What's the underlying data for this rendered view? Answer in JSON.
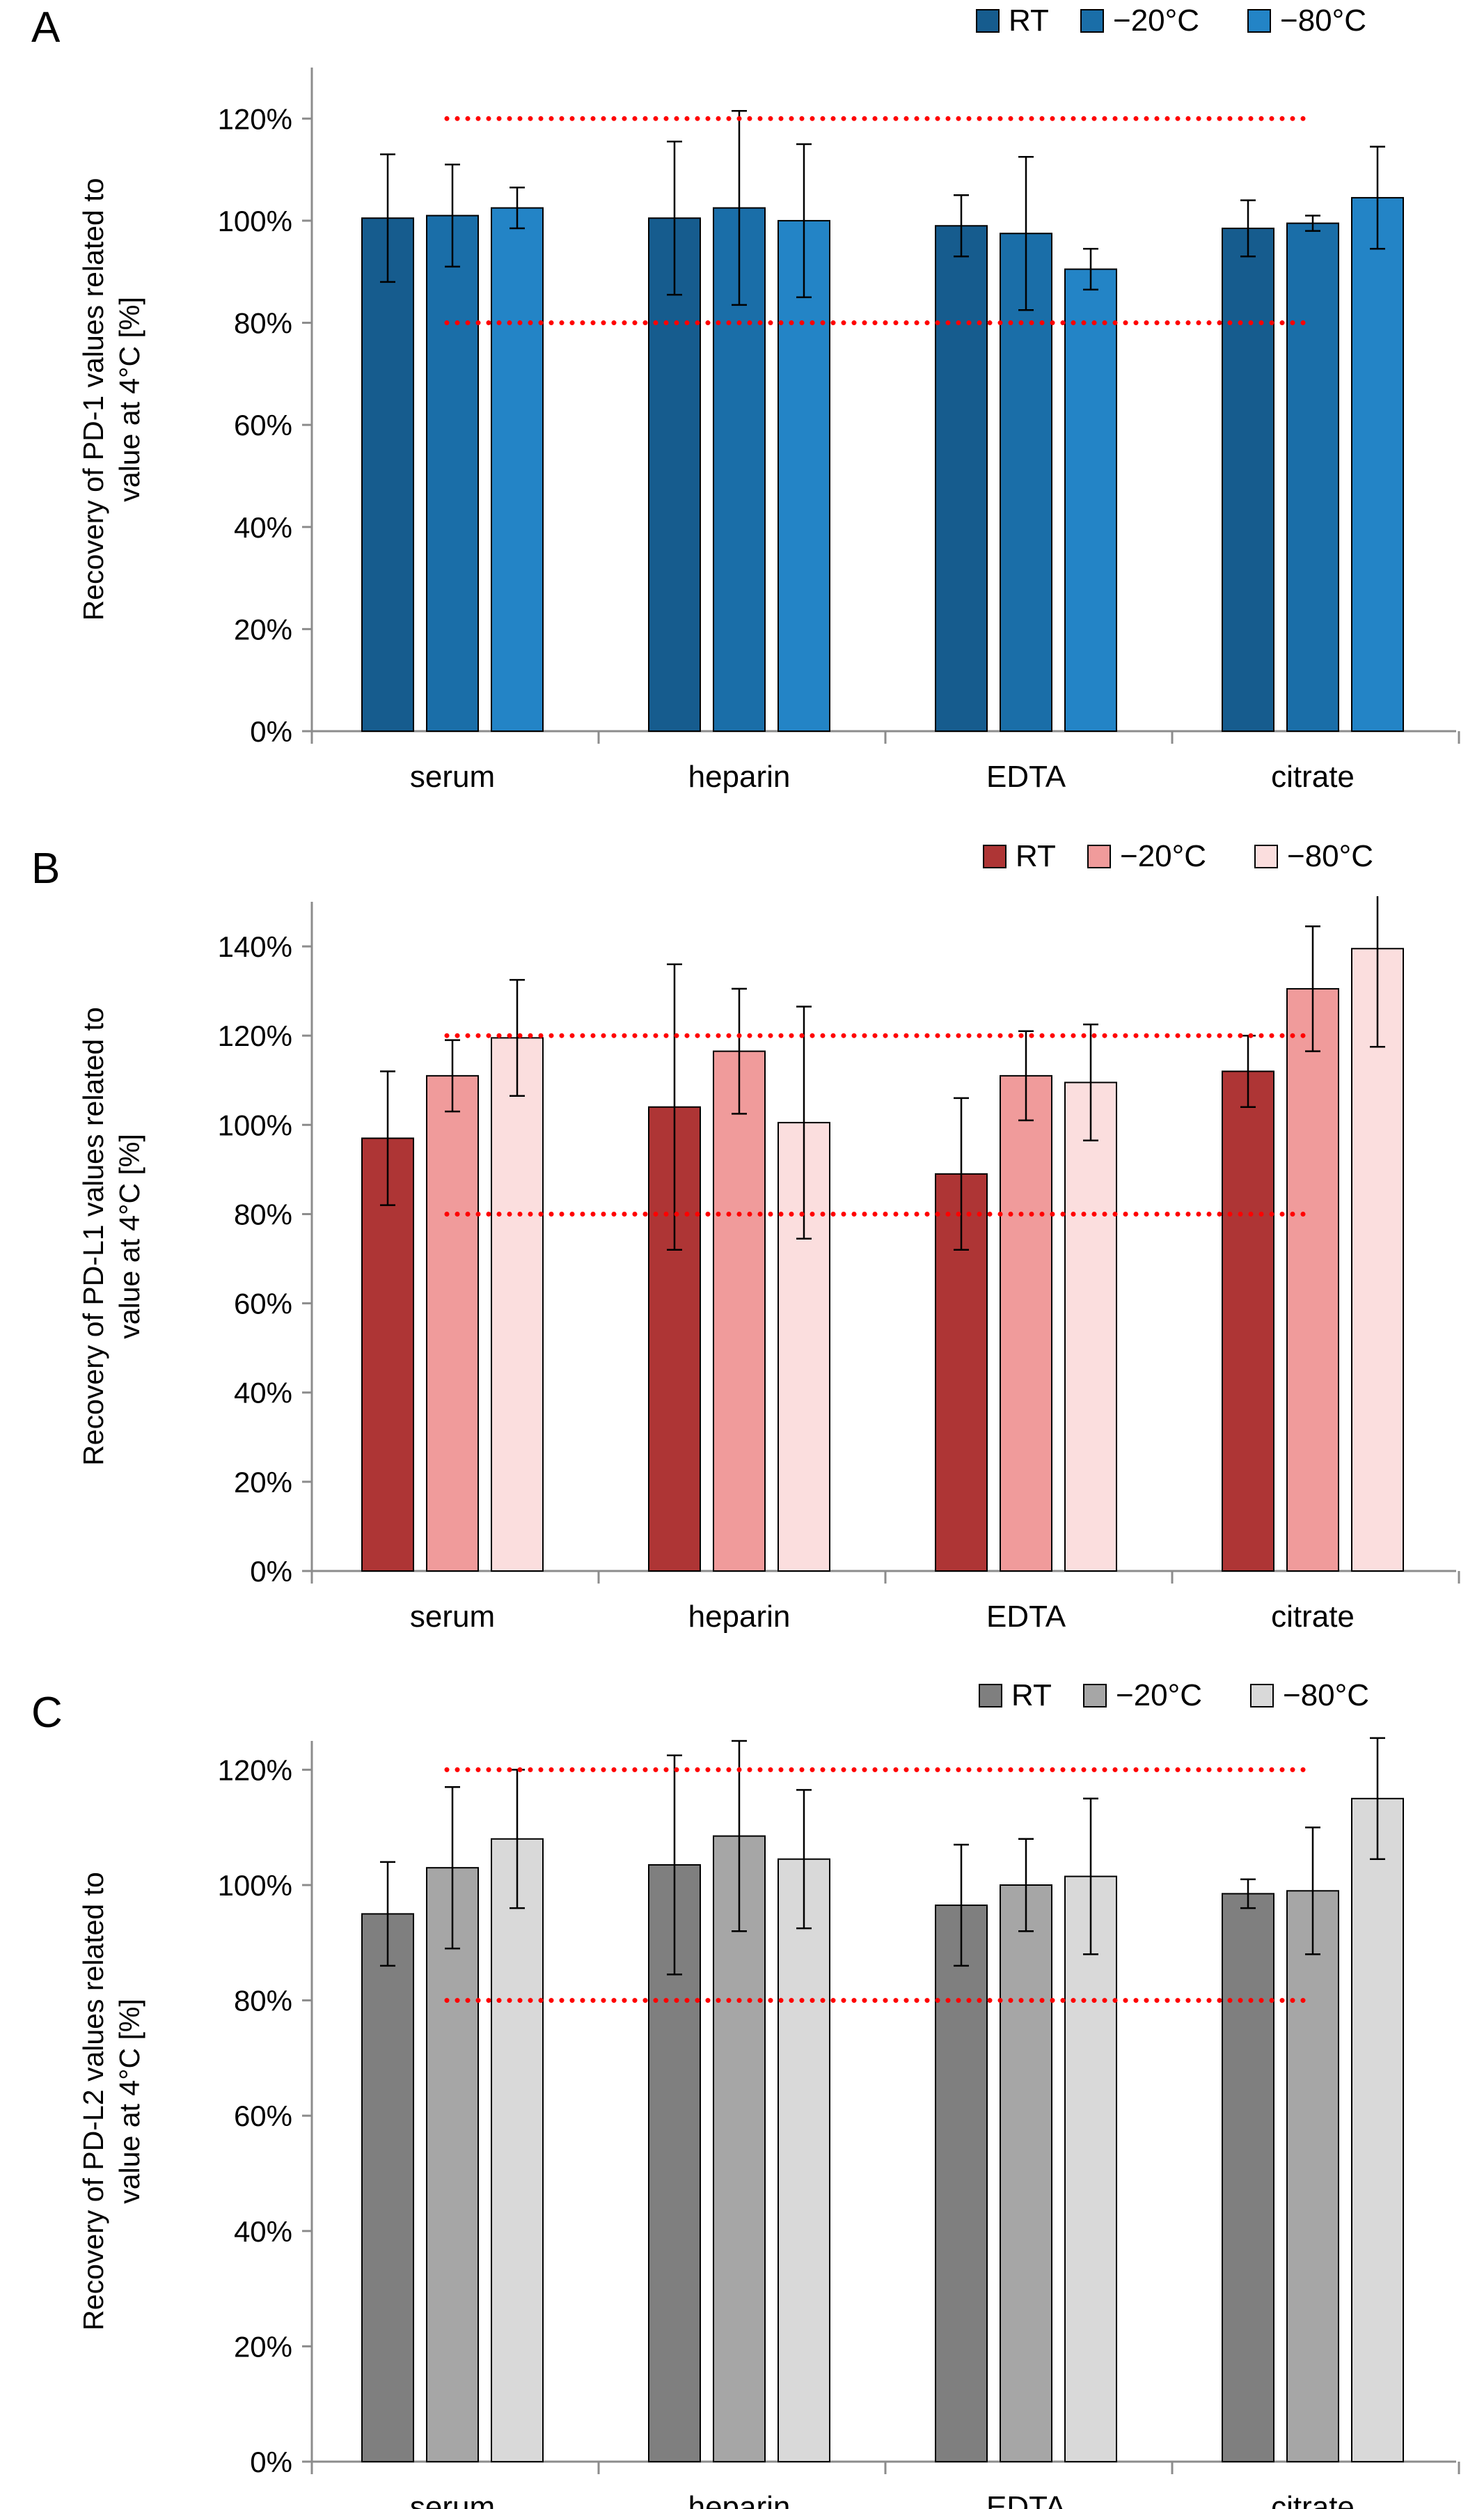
{
  "chart_data": [
    {
      "panel_label": "A",
      "type": "bar",
      "ylabel_lines": [
        "Recovery of PD-1 values related to",
        "value at 4°C [%]"
      ],
      "categories": [
        "serum",
        "heparin",
        "EDTA",
        "citrate"
      ],
      "ylim": [
        0,
        130
      ],
      "yticks": [
        0,
        20,
        40,
        60,
        80,
        100,
        120
      ],
      "ytick_labels": [
        "0%",
        "20%",
        "40%",
        "60%",
        "80%",
        "100%",
        "120%"
      ],
      "series": [
        {
          "name": "RT",
          "color": "#165c8e",
          "values": [
            100.5,
            100.5,
            99,
            98.5
          ],
          "errors": [
            12.5,
            15,
            6,
            5.5
          ]
        },
        {
          "name": "−20°C",
          "color": "#1a6ea8",
          "values": [
            101,
            102.5,
            97.5,
            99.5
          ],
          "errors": [
            10,
            19,
            15,
            1.5
          ]
        },
        {
          "name": "−80°C",
          "color": "#2384c6",
          "values": [
            102.5,
            100,
            90.5,
            104.5
          ],
          "errors": [
            4,
            15,
            4,
            10
          ]
        }
      ],
      "reference_lines": [
        120,
        80
      ],
      "reference_color": "#ff0000",
      "legend_position": "top-right"
    },
    {
      "panel_label": "B",
      "type": "bar",
      "ylabel_lines": [
        "Recovery of PD-L1 values related to",
        "value at 4°C [%]"
      ],
      "categories": [
        "serum",
        "heparin",
        "EDTA",
        "citrate"
      ],
      "ylim": [
        0,
        150
      ],
      "yticks": [
        0,
        20,
        40,
        60,
        80,
        100,
        120,
        140
      ],
      "ytick_labels": [
        "0%",
        "20%",
        "40%",
        "60%",
        "80%",
        "100%",
        "120%",
        "140%"
      ],
      "series": [
        {
          "name": "RT",
          "color": "#ae3535",
          "values": [
            97,
            104,
            89,
            112
          ],
          "errors": [
            15,
            32,
            17,
            8
          ]
        },
        {
          "name": "−20°C",
          "color": "#f09b9b",
          "values": [
            111,
            116.5,
            111,
            130.5
          ],
          "errors": [
            8,
            14,
            10,
            14
          ]
        },
        {
          "name": "−80°C",
          "color": "#fbdede",
          "values": [
            119.5,
            100.5,
            109.5,
            139.5
          ],
          "errors": [
            13,
            26,
            13,
            22
          ]
        }
      ],
      "reference_lines": [
        120,
        80
      ],
      "reference_color": "#ff0000",
      "legend_position": "top-right"
    },
    {
      "panel_label": "C",
      "type": "bar",
      "ylabel_lines": [
        "Recovery of PD-L2 values related to",
        "value at 4°C [%]"
      ],
      "categories": [
        "serum",
        "heparin",
        "EDTA",
        "citrate"
      ],
      "ylim": [
        0,
        125
      ],
      "yticks": [
        0,
        20,
        40,
        60,
        80,
        100,
        120
      ],
      "ytick_labels": [
        "0%",
        "20%",
        "40%",
        "60%",
        "80%",
        "100%",
        "120%"
      ],
      "series": [
        {
          "name": "RT",
          "color": "#7f7f7f",
          "values": [
            95,
            103.5,
            96.5,
            98.5
          ],
          "errors": [
            9,
            19,
            10.5,
            2.5
          ]
        },
        {
          "name": "−20°C",
          "color": "#a6a6a6",
          "values": [
            103,
            108.5,
            100,
            99
          ],
          "errors": [
            14,
            16.5,
            8,
            11
          ]
        },
        {
          "name": "−80°C",
          "color": "#d9d9d9",
          "values": [
            108,
            104.5,
            101.5,
            115
          ],
          "errors": [
            12,
            12,
            13.5,
            10.5
          ]
        }
      ],
      "reference_lines": [
        120,
        80
      ],
      "reference_color": "#ff0000",
      "legend_position": "top-right"
    }
  ]
}
